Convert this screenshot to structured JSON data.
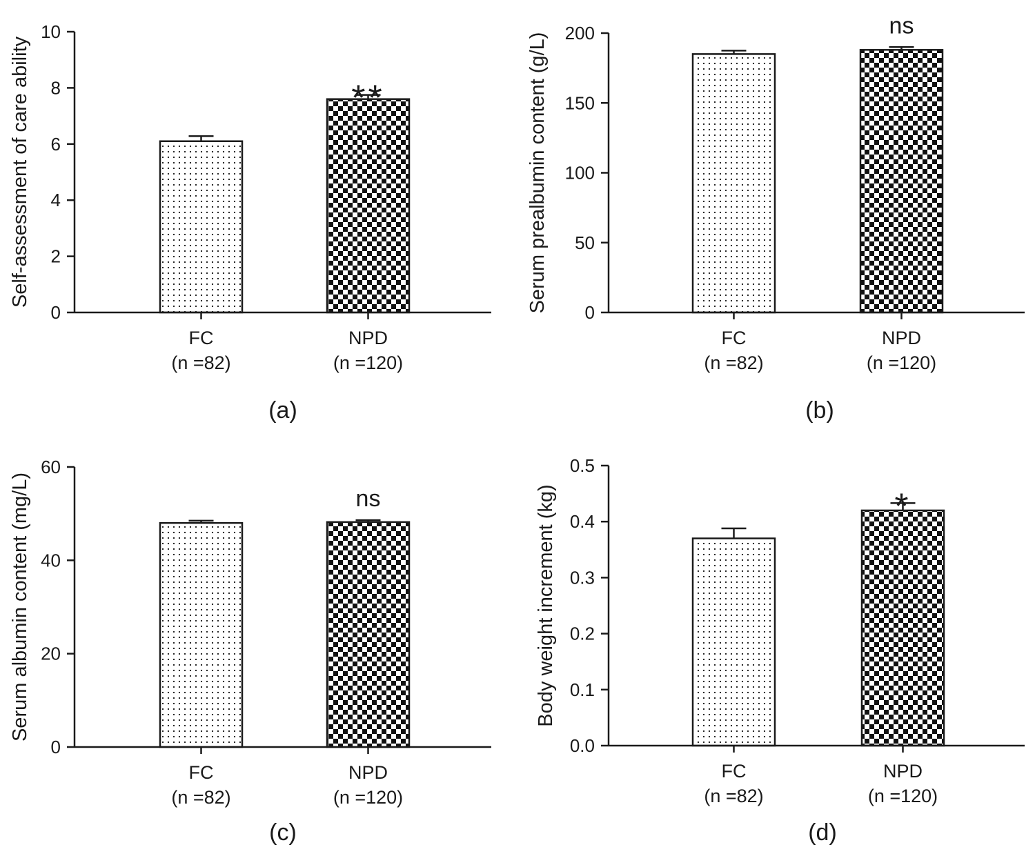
{
  "figure": {
    "description_id": "care-ability-nutrition-comparison"
  },
  "chart_data": [
    {
      "type": "bar",
      "panel_label": "(a)",
      "ylabel": "Self-assessment of care ability",
      "ylim": [
        0,
        10
      ],
      "yticks": [
        "0",
        "2",
        "4",
        "6",
        "8",
        "10"
      ],
      "ytick_values": [
        0,
        2,
        4,
        6,
        8,
        10
      ],
      "categories": [
        "FC",
        "NPD"
      ],
      "category_n": [
        "(n =82)",
        "(n =120)"
      ],
      "values": [
        6.1,
        7.6
      ],
      "errors": [
        0.18,
        0.15
      ],
      "significance": "**",
      "patterns": [
        "dots",
        "checker"
      ]
    },
    {
      "type": "bar",
      "panel_label": "(b)",
      "ylabel": "Serum prealbumin content (g/L)",
      "ylim": [
        0,
        200
      ],
      "yticks": [
        "0",
        "50",
        "100",
        "150",
        "200"
      ],
      "ytick_values": [
        0,
        50,
        100,
        150,
        200
      ],
      "categories": [
        "FC",
        "NPD"
      ],
      "category_n": [
        "(n =82)",
        "(n =120)"
      ],
      "values": [
        185,
        188
      ],
      "errors": [
        2.5,
        2.0
      ],
      "significance": "ns",
      "patterns": [
        "dots",
        "checker"
      ]
    },
    {
      "type": "bar",
      "panel_label": "(c)",
      "ylabel": "Serum albumin content (mg/L)",
      "ylim": [
        0,
        60
      ],
      "yticks": [
        "0",
        "20",
        "40",
        "60"
      ],
      "ytick_values": [
        0,
        20,
        40,
        60
      ],
      "categories": [
        "FC",
        "NPD"
      ],
      "category_n": [
        "(n =82)",
        "(n =120)"
      ],
      "values": [
        48.0,
        48.2
      ],
      "errors": [
        0.5,
        0.4
      ],
      "significance": "ns",
      "patterns": [
        "dots",
        "checker"
      ]
    },
    {
      "type": "bar",
      "panel_label": "(d)",
      "ylabel": "Body weight increment (kg)",
      "ylim": [
        0,
        0.5
      ],
      "yticks": [
        "0.0",
        "0.1",
        "0.2",
        "0.3",
        "0.4",
        "0.5"
      ],
      "ytick_values": [
        0,
        0.1,
        0.2,
        0.3,
        0.4,
        0.5
      ],
      "categories": [
        "FC",
        "NPD"
      ],
      "category_n": [
        "(n =82)",
        "(n =120)"
      ],
      "values": [
        0.37,
        0.42
      ],
      "errors": [
        0.018,
        0.013
      ],
      "significance": "*",
      "patterns": [
        "dots",
        "checker"
      ]
    }
  ]
}
